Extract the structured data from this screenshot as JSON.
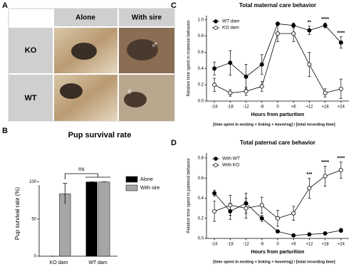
{
  "photo_panel": {
    "panel_label": "A",
    "columns": [
      "Alone",
      "With sire"
    ],
    "rows": [
      "KO",
      "WT"
    ],
    "symbols": [
      "♂",
      "♀"
    ]
  },
  "chart_data": [
    {
      "type": "bar",
      "panel_label": "B",
      "title": "Pup survival rate",
      "y_label": "Pup survival rate (%)",
      "categories": [
        "KO dam",
        "WT dam"
      ],
      "series": [
        {
          "name": "Alone",
          "color": "#000000",
          "values": [
            0,
            100
          ],
          "errors": [
            0,
            0
          ]
        },
        {
          "name": "With sire",
          "color": "#a6a6a6",
          "values": [
            84,
            100
          ],
          "errors": [
            14,
            0
          ]
        }
      ],
      "ylim": [
        0,
        115
      ],
      "yticks": [
        0,
        50,
        100
      ],
      "annotations": [
        {
          "text": "ns"
        }
      ],
      "legend": "right"
    },
    {
      "type": "line",
      "panel_label": "C",
      "title": "Total maternal care behavior",
      "y_label": "Relative time spent in maternal behavior",
      "x_label": "Hours from parturition",
      "footnote": "[time spent in nesting + licking + hovering] / [total recording time]",
      "categories": [
        "-24",
        "-18",
        "-12",
        "-6",
        "0",
        "+6",
        "+12",
        "+18",
        "+24"
      ],
      "series": [
        {
          "name": "WT dam",
          "color": "#000000",
          "marker": "filled",
          "values": [
            0.4,
            0.47,
            0.3,
            0.45,
            0.95,
            0.93,
            0.87,
            0.93,
            0.72
          ],
          "errors": [
            0.08,
            0.15,
            0.15,
            0.12,
            0.02,
            0.03,
            0.05,
            0.03,
            0.07
          ]
        },
        {
          "name": "KO dam",
          "color": "#000000",
          "marker": "open",
          "values": [
            0.2,
            0.1,
            0.12,
            0.18,
            0.83,
            0.83,
            0.45,
            0.1,
            0.15
          ],
          "errors": [
            0.08,
            0.04,
            0.05,
            0.06,
            0.1,
            0.1,
            0.15,
            0.05,
            0.12
          ]
        }
      ],
      "ylim": [
        0,
        1.05
      ],
      "yticks": [
        {
          "value": 0,
          "label": "0.0"
        },
        {
          "value": 0.2,
          "label": "0.2"
        },
        {
          "value": 0.4,
          "label": "0.4"
        },
        {
          "value": 0.6,
          "label": "0.6"
        },
        {
          "value": 0.8,
          "label": "0.8"
        },
        {
          "value": 1,
          "label": "1.0"
        }
      ],
      "annotations": [
        {
          "text": "**",
          "x": "+12"
        },
        {
          "text": "****",
          "x": "+18"
        },
        {
          "text": "****",
          "x": "+24"
        }
      ],
      "legend": "upper left"
    },
    {
      "type": "line",
      "panel_label": "D",
      "title": "Total paternal care behavior",
      "y_label": "Relative time spent in paternal behavior",
      "x_label": "Hours from parturition",
      "footnote": "[time spent in nesting + licking + hovering] / [total recording time]",
      "categories": [
        "-24",
        "-18",
        "-12",
        "-6",
        "0",
        "+6",
        "+12",
        "+18",
        "+24"
      ],
      "series": [
        {
          "name": "With WT",
          "color": "#000000",
          "marker": "filled",
          "values": [
            0.45,
            0.27,
            0.35,
            0.2,
            0.07,
            0.03,
            0.04,
            0.05,
            0.08
          ],
          "errors": [
            0.03,
            0.08,
            0.1,
            0.03,
            0.01,
            0.01,
            0.01,
            0.01,
            0.02
          ]
        },
        {
          "name": "With KO",
          "color": "#000000",
          "marker": "open",
          "values": [
            0.27,
            0.33,
            0.3,
            0.33,
            0.2,
            0.25,
            0.5,
            0.62,
            0.68
          ],
          "errors": [
            0.1,
            0.1,
            0.1,
            0.08,
            0.08,
            0.07,
            0.1,
            0.1,
            0.08
          ]
        }
      ],
      "ylim": [
        0,
        0.85
      ],
      "yticks": [
        {
          "value": 0,
          "label": "0.0"
        },
        {
          "value": 0.2,
          "label": "0.2"
        },
        {
          "value": 0.4,
          "label": "0.4"
        },
        {
          "value": 0.6,
          "label": "0.6"
        },
        {
          "value": 0.8,
          "label": "0.8"
        }
      ],
      "annotations": [
        {
          "text": "***",
          "x": "+12"
        },
        {
          "text": "****",
          "x": "+18"
        },
        {
          "text": "****",
          "x": "+24"
        }
      ],
      "legend": "upper left"
    }
  ]
}
